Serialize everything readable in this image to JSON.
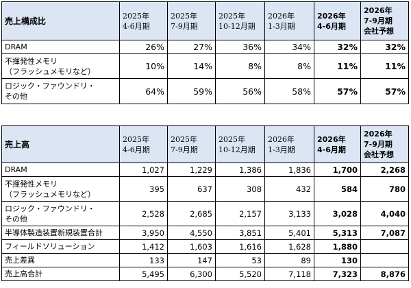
{
  "ratio_table": {
    "corner": "売上構成比",
    "columns": [
      {
        "line1": "2025年",
        "line2": "4-6月期",
        "line3": "",
        "bold": false
      },
      {
        "line1": "2025年",
        "line2": "7-9月期",
        "line3": "",
        "bold": false
      },
      {
        "line1": "2025年",
        "line2": "10-12月期",
        "line3": "",
        "bold": false
      },
      {
        "line1": "2026年",
        "line2": "1-3月期",
        "line3": "",
        "bold": false
      },
      {
        "line1": "2026年",
        "line2": "4-6月期",
        "line3": "",
        "bold": true
      },
      {
        "line1": "2026年",
        "line2": "7-9月期",
        "line3": "会社予想",
        "bold": true
      }
    ],
    "rows": [
      {
        "line1": "DRAM",
        "line2": "",
        "values": [
          "26%",
          "27%",
          "36%",
          "34%",
          "32%",
          "32%"
        ]
      },
      {
        "line1": "不揮発性メモリ",
        "line2": "（フラッシュメモリなど）",
        "values": [
          "10%",
          "14%",
          "8%",
          "8%",
          "11%",
          "11%"
        ]
      },
      {
        "line1": "ロジック・ファウンドリ・",
        "line2": "その他",
        "values": [
          "64%",
          "59%",
          "56%",
          "58%",
          "57%",
          "57%"
        ]
      }
    ]
  },
  "sales_table": {
    "corner": "売上高",
    "columns": [
      {
        "line1": "2025年",
        "line2": "4-6月期",
        "line3": "",
        "bold": false
      },
      {
        "line1": "2025年",
        "line2": "7-9月期",
        "line3": "",
        "bold": false
      },
      {
        "line1": "2025年",
        "line2": "10-12月期",
        "line3": "",
        "bold": false
      },
      {
        "line1": "2026年",
        "line2": "1-3月期",
        "line3": "",
        "bold": false
      },
      {
        "line1": "2026年",
        "line2": "4-6月期",
        "line3": "",
        "bold": true
      },
      {
        "line1": "2026年",
        "line2": "7-9月期",
        "line3": "会社予想",
        "bold": true
      }
    ],
    "rows": [
      {
        "line1": "DRAM",
        "line2": "",
        "values": [
          "1,027",
          "1,229",
          "1,386",
          "1,836",
          "1,700",
          "2,268"
        ]
      },
      {
        "line1": "不揮発性メモリ",
        "line2": "（フラッシュメモリなど）",
        "values": [
          "395",
          "637",
          "308",
          "432",
          "584",
          "780"
        ]
      },
      {
        "line1": "ロジック・ファウンドリ・",
        "line2": "その他",
        "values": [
          "2,528",
          "2,685",
          "2,157",
          "3,133",
          "3,028",
          "4,040"
        ]
      },
      {
        "line1": "半導体製造装置新規装置合計",
        "line2": "",
        "values": [
          "3,950",
          "4,550",
          "3,851",
          "5,401",
          "5,313",
          "7,087"
        ]
      },
      {
        "line1": "フィールドソリューション",
        "line2": "",
        "values": [
          "1,412",
          "1,603",
          "1,616",
          "1,628",
          "1,880",
          ""
        ]
      },
      {
        "line1": "売上差異",
        "line2": "",
        "values": [
          "133",
          "147",
          "53",
          "89",
          "130",
          ""
        ]
      },
      {
        "line1": "売上高合計",
        "line2": "",
        "values": [
          "5,495",
          "6,300",
          "5,520",
          "7,118",
          "7,323",
          "8,876"
        ]
      }
    ]
  }
}
